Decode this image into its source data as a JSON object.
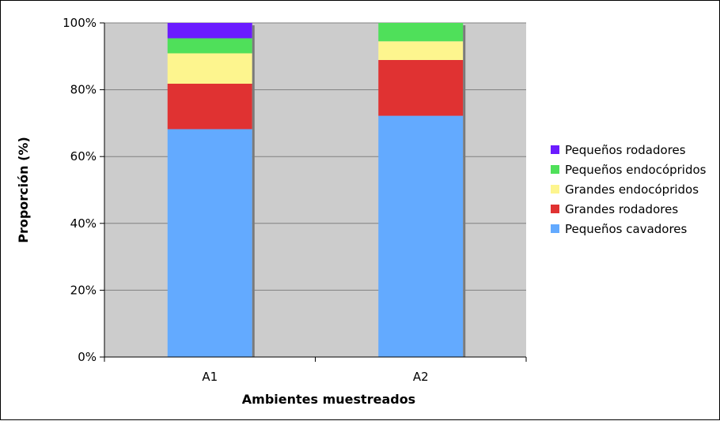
{
  "chart_data": {
    "type": "bar",
    "stacked": true,
    "categories": [
      "A1",
      "A2"
    ],
    "series": [
      {
        "name": "Pequeños cavadores",
        "color": "#63aaff",
        "values": [
          68.2,
          72.2
        ]
      },
      {
        "name": "Grandes rodadores",
        "color": "#e03232",
        "values": [
          13.6,
          16.7
        ]
      },
      {
        "name": "Grandes endocópridos",
        "color": "#fdf58e",
        "values": [
          9.1,
          5.6
        ]
      },
      {
        "name": "Pequeños endocópridos",
        "color": "#4fe05a",
        "values": [
          4.5,
          5.5
        ]
      },
      {
        "name": "Pequeños rodadores",
        "color": "#6b1cff",
        "values": [
          4.6,
          0
        ]
      }
    ],
    "xlabel": "Ambientes muestreados",
    "ylabel": "Proporción (%)",
    "ylim": [
      0,
      100
    ],
    "yticks": [
      "0%",
      "20%",
      "40%",
      "60%",
      "80%",
      "100%"
    ],
    "grid": true,
    "plot_background": "#cccccc",
    "legend_position": "right"
  }
}
